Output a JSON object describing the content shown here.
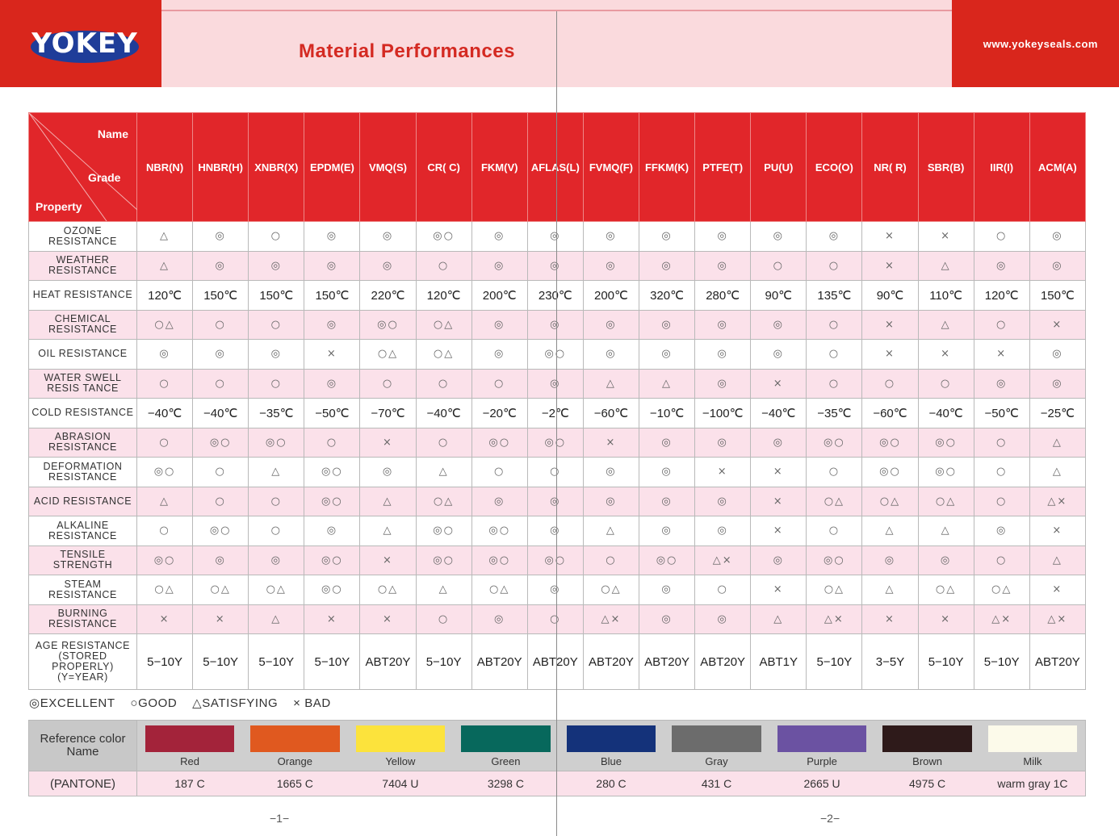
{
  "header": {
    "logo_text": "YOKEY",
    "title": "Material Performances",
    "website": "www.yokeyseals.com"
  },
  "corner": {
    "name": "Name",
    "grade": "Grade",
    "property": "Property"
  },
  "materials": [
    "NBR(N)",
    "HNBR(H)",
    "XNBR(X)",
    "EPDM(E)",
    "VMQ(S)",
    "CR( C)",
    "FKM(V)",
    "AFLAS(L)",
    "FVMQ(F)",
    "FFKM(K)",
    "PTFE(T)",
    "PU(U)",
    "ECO(O)",
    "NR( R)",
    "SBR(B)",
    "IIR(I)",
    "ACM(A)"
  ],
  "rows": [
    {
      "property": "OZONE RESISTANCE",
      "kind": "sym",
      "values": [
        "△",
        "◎",
        "○",
        "◎",
        "◎",
        "◎○",
        "◎",
        "◎",
        "◎",
        "◎",
        "◎",
        "◎",
        "◎",
        "×",
        "×",
        "○",
        "◎"
      ]
    },
    {
      "property": "WEATHER RESISTANCE",
      "kind": "sym",
      "values": [
        "△",
        "◎",
        "◎",
        "◎",
        "◎",
        "○",
        "◎",
        "◎",
        "◎",
        "◎",
        "◎",
        "○",
        "○",
        "×",
        "△",
        "◎",
        "◎"
      ]
    },
    {
      "property": "HEAT RESISTANCE",
      "kind": "num",
      "values": [
        "120℃",
        "150℃",
        "150℃",
        "150℃",
        "220℃",
        "120℃",
        "200℃",
        "230℃",
        "200℃",
        "320℃",
        "280℃",
        "90℃",
        "135℃",
        "90℃",
        "110℃",
        "120℃",
        "150℃"
      ]
    },
    {
      "property": "CHEMICAL RESISTANCE",
      "kind": "sym",
      "values": [
        "○△",
        "○",
        "○",
        "◎",
        "◎○",
        "○△",
        "◎",
        "◎",
        "◎",
        "◎",
        "◎",
        "◎",
        "○",
        "×",
        "△",
        "○",
        "×"
      ]
    },
    {
      "property": "OIL RESISTANCE",
      "kind": "sym",
      "values": [
        "◎",
        "◎",
        "◎",
        "×",
        "○△",
        "○△",
        "◎",
        "◎○",
        "◎",
        "◎",
        "◎",
        "◎",
        "○",
        "×",
        "×",
        "×",
        "◎"
      ]
    },
    {
      "property": "WATER SWELL RESIS TANCE",
      "kind": "sym",
      "values": [
        "○",
        "○",
        "○",
        "◎",
        "○",
        "○",
        "○",
        "◎",
        "△",
        "△",
        "◎",
        "×",
        "○",
        "○",
        "○",
        "◎",
        "◎"
      ]
    },
    {
      "property": "COLD RESISTANCE",
      "kind": "num",
      "values": [
        "−40℃",
        "−40℃",
        "−35℃",
        "−50℃",
        "−70℃",
        "−40℃",
        "−20℃",
        "−2℃",
        "−60℃",
        "−10℃",
        "−100℃",
        "−40℃",
        "−35℃",
        "−60℃",
        "−40℃",
        "−50℃",
        "−25℃"
      ]
    },
    {
      "property": "ABRASION RESISTANCE",
      "kind": "sym",
      "values": [
        "○",
        "◎○",
        "◎○",
        "○",
        "×",
        "○",
        "◎○",
        "◎○",
        "×",
        "◎",
        "◎",
        "◎",
        "◎○",
        "◎○",
        "◎○",
        "○",
        "△"
      ]
    },
    {
      "property": "DEFORMATION RESISTANCE",
      "kind": "sym",
      "values": [
        "◎○",
        "○",
        "△",
        "◎○",
        "◎",
        "△",
        "○",
        "○",
        "◎",
        "◎",
        "×",
        "×",
        "○",
        "◎○",
        "◎○",
        "○",
        "△"
      ]
    },
    {
      "property": "ACID RESISTANCE",
      "kind": "sym",
      "values": [
        "△",
        "○",
        "○",
        "◎○",
        "△",
        "○△",
        "◎",
        "◎",
        "◎",
        "◎",
        "◎",
        "×",
        "○△",
        "○△",
        "○△",
        "○",
        "△×"
      ]
    },
    {
      "property": "ALKALINE RESISTANCE",
      "kind": "sym",
      "values": [
        "○",
        "◎○",
        "○",
        "◎",
        "△",
        "◎○",
        "◎○",
        "◎",
        "△",
        "◎",
        "◎",
        "×",
        "○",
        "△",
        "△",
        "◎",
        "×"
      ]
    },
    {
      "property": "TENSILE STRENGTH",
      "kind": "sym",
      "values": [
        "◎○",
        "◎",
        "◎",
        "◎○",
        "×",
        "◎○",
        "◎○",
        "◎○",
        "○",
        "◎○",
        "△×",
        "◎",
        "◎○",
        "◎",
        "◎",
        "○",
        "△"
      ]
    },
    {
      "property": "STEAM RESISTANCE",
      "kind": "sym",
      "values": [
        "○△",
        "○△",
        "○△",
        "◎○",
        "○△",
        "△",
        "○△",
        "◎",
        "○△",
        "◎",
        "○",
        "×",
        "○△",
        "△",
        "○△",
        "○△",
        "×"
      ]
    },
    {
      "property": "BURNING RESISTANCE",
      "kind": "sym",
      "values": [
        "×",
        "×",
        "△",
        "×",
        "×",
        "○",
        "◎",
        "○",
        "△×",
        "◎",
        "◎",
        "△",
        "△×",
        "×",
        "×",
        "△×",
        "△×"
      ]
    },
    {
      "property": "AGE RESISTANCE (STORED PROPERLY) (Y=YEAR)",
      "kind": "num",
      "values": [
        "5−10Y",
        "5−10Y",
        "5−10Y",
        "5−10Y",
        "ABT20Y",
        "5−10Y",
        "ABT20Y",
        "ABT20Y",
        "ABT20Y",
        "ABT20Y",
        "ABT20Y",
        "ABT1Y",
        "5−10Y",
        "3−5Y",
        "5−10Y",
        "5−10Y",
        "ABT20Y"
      ]
    }
  ],
  "legend": {
    "excellent": "◎EXCELLENT",
    "good": "○GOOD",
    "satisfying": "△SATISFYING",
    "bad": "× BAD"
  },
  "reference": {
    "label": "Reference color Name",
    "pantone_label": "(PANTONE)",
    "colors": [
      {
        "name": "Red",
        "pantone": "187 C",
        "hex": "#a3233a"
      },
      {
        "name": "Orange",
        "pantone": "1665 C",
        "hex": "#e0591f"
      },
      {
        "name": "Yellow",
        "pantone": "7404 U",
        "hex": "#fce33c"
      },
      {
        "name": "Green",
        "pantone": "3298 C",
        "hex": "#07685c"
      },
      {
        "name": "Blue",
        "pantone": "280 C",
        "hex": "#14327a"
      },
      {
        "name": "Gray",
        "pantone": "431 C",
        "hex": "#6c6c6c"
      },
      {
        "name": "Purple",
        "pantone": "2665 U",
        "hex": "#6b52a2"
      },
      {
        "name": "Brown",
        "pantone": "4975 C",
        "hex": "#2e1a1a"
      },
      {
        "name": "Milk",
        "pantone": "warm gray 1C",
        "hex": "#fcfaea"
      }
    ]
  },
  "pages": {
    "left": "−1−",
    "right": "−2−"
  }
}
